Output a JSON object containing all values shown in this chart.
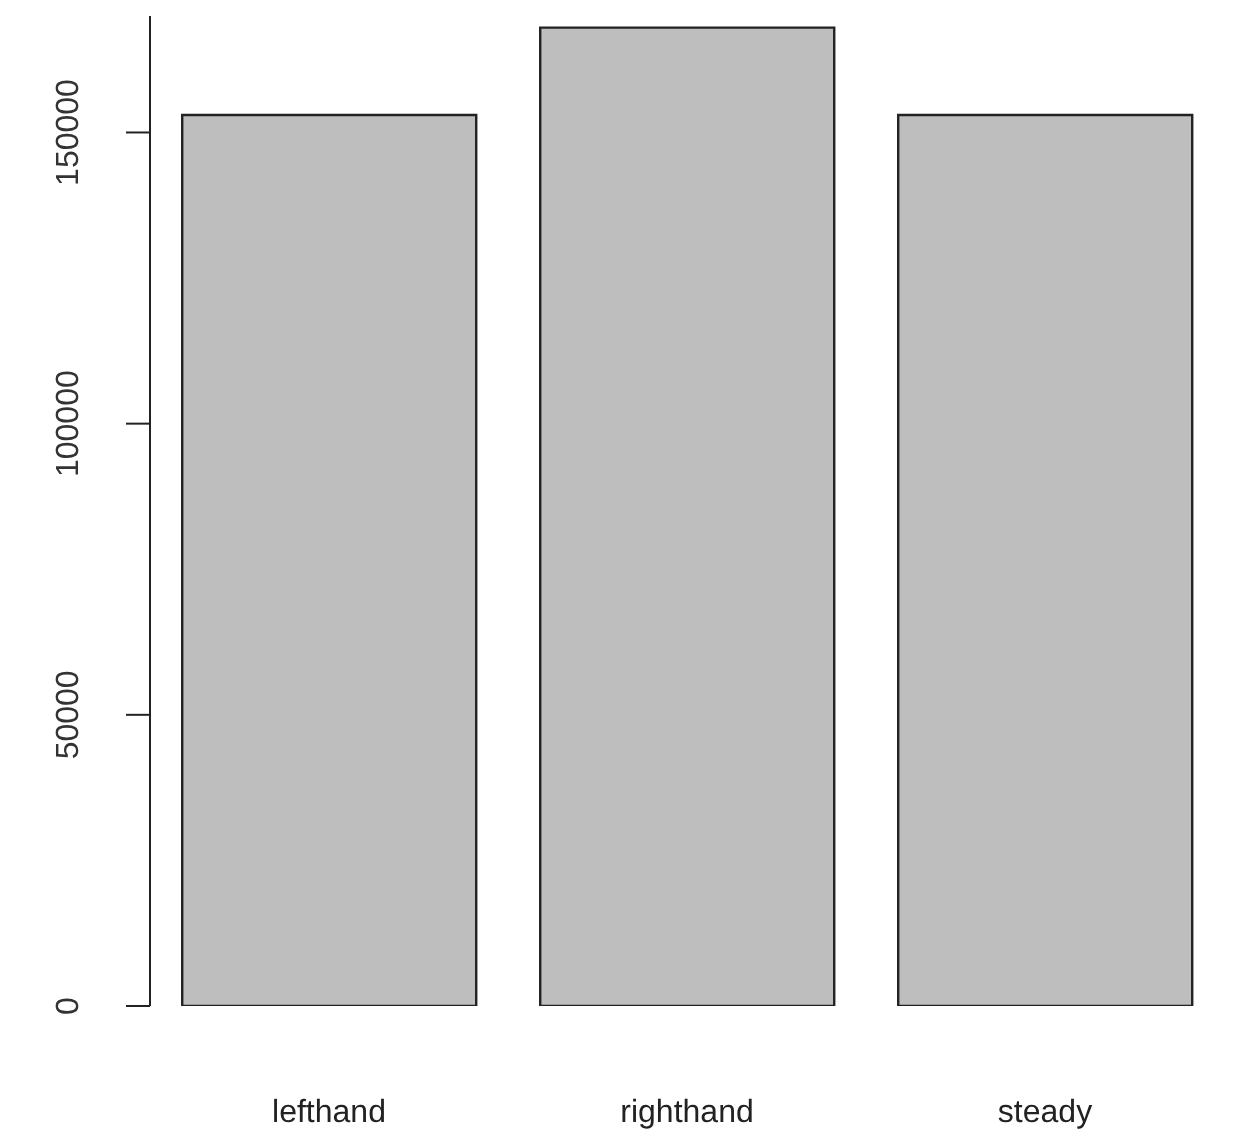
{
  "chart_data": {
    "type": "bar",
    "categories": [
      "lefthand",
      "righthand",
      "steady"
    ],
    "values": [
      153000,
      168000,
      153000
    ],
    "color": "#bebebe",
    "ylim": [
      0,
      170000
    ],
    "yticks": [
      0,
      50000,
      100000,
      150000
    ],
    "grid": false
  }
}
